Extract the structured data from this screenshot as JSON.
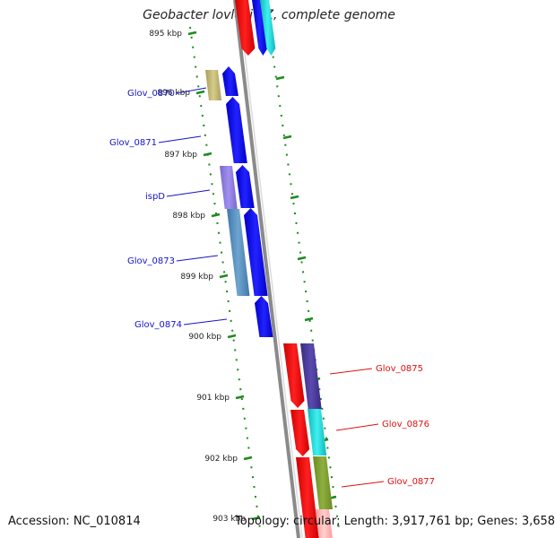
{
  "title": "Geobacter lovleyi SZ, complete genome",
  "accession": "Accession: NC_010814",
  "topology": "Topology: circular; Length: 3,917,761 bp; Genes: 3,658",
  "colors": {
    "backbone": "#8a8a8a",
    "tick": "#1e8a1e",
    "left_label": "#1414c8",
    "right_label": "#e01010"
  },
  "ticks": [
    "895 kbp",
    "896 kbp",
    "897 kbp",
    "898 kbp",
    "899 kbp",
    "900 kbp",
    "901 kbp",
    "902 kbp",
    "903 kbp"
  ],
  "gene_labels_left": [
    "Glov_0870",
    "Glov_0871",
    "ispD",
    "Glov_0873",
    "Glov_0874"
  ],
  "gene_labels_right": [
    "Glov_0875",
    "Glov_0876",
    "Glov_0877"
  ]
}
